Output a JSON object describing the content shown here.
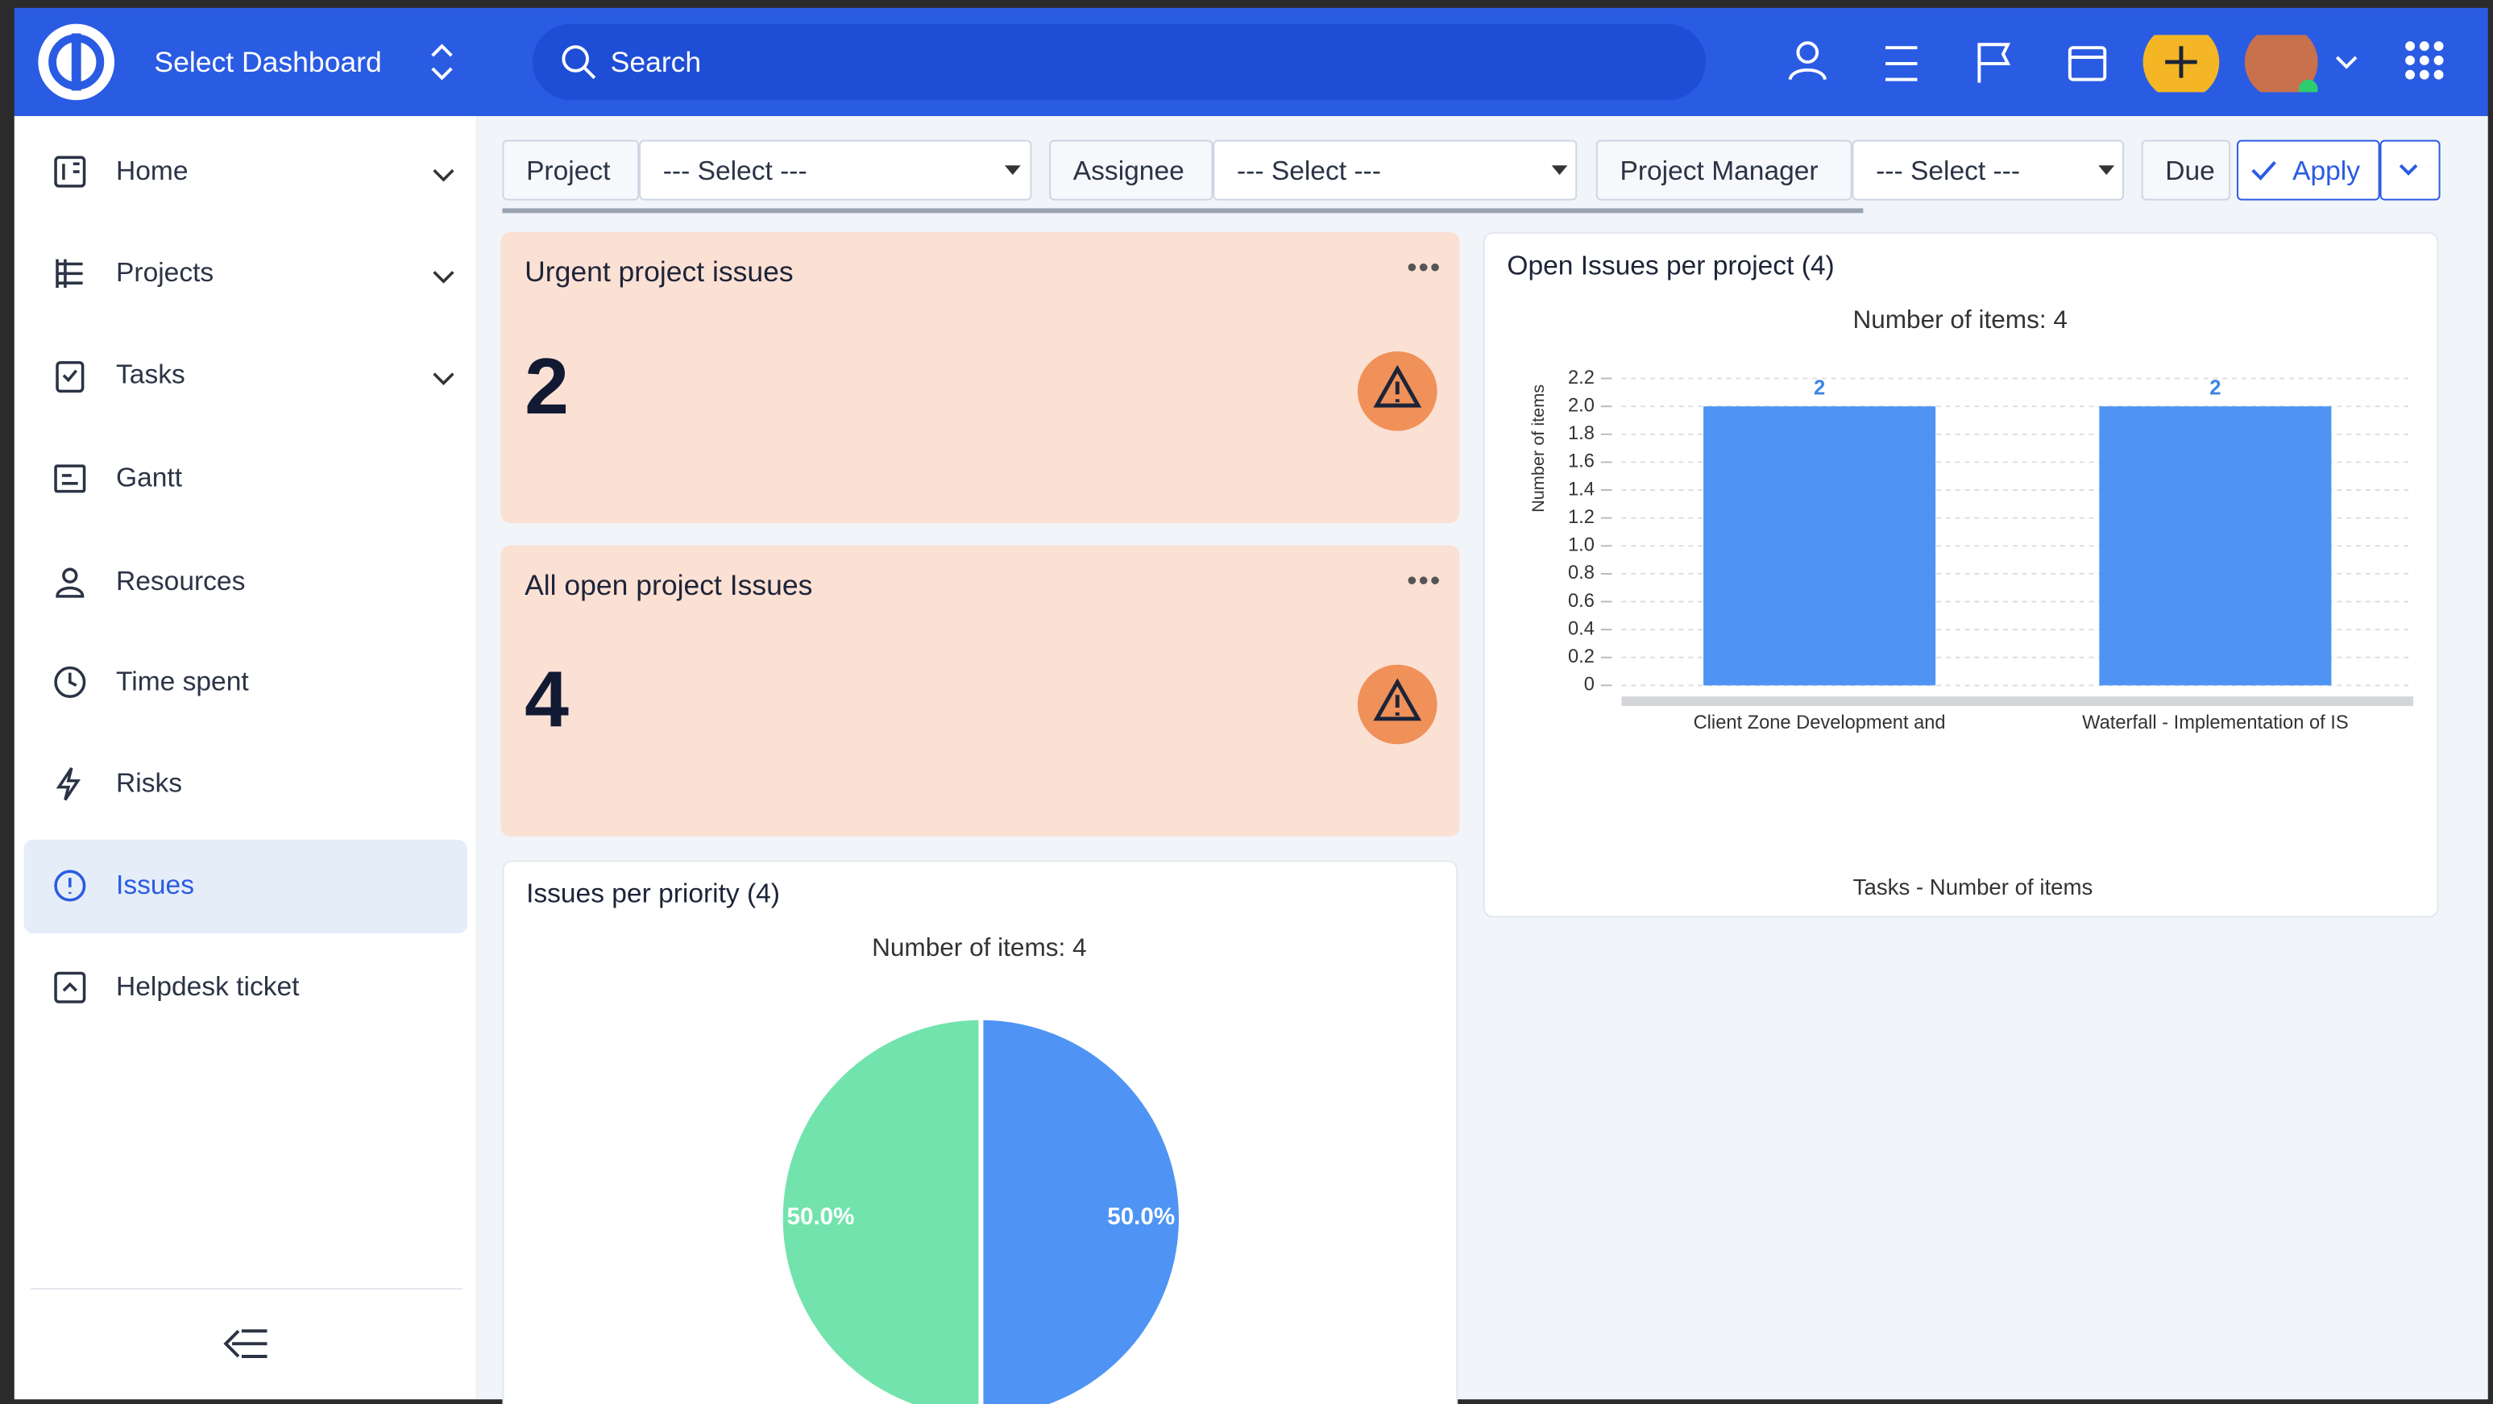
{
  "header": {
    "dashboard_select": "Select Dashboard",
    "search": "Search"
  },
  "sidebar": {
    "items": [
      "Home",
      "Projects",
      "Tasks",
      "Gantt",
      "Resources",
      "Time spent",
      "Risks",
      "Issues",
      "Helpdesk ticket"
    ]
  },
  "filters": {
    "fields": [
      {
        "label": "Project",
        "select": "--- Select ---"
      },
      {
        "label": "Assignee",
        "select": "--- Select ---"
      },
      {
        "label": "Project Manager",
        "select": "--- Select ---"
      }
    ],
    "due": "Due",
    "apply": "Apply"
  },
  "widgets": [
    {
      "title": "Urgent project issues",
      "value": "2"
    },
    {
      "title": "All open project Issues",
      "value": "4"
    }
  ],
  "chart_data": [
    {
      "type": "bar",
      "title": "Open Issues per project (4)",
      "subtitle": "Number of items: 4",
      "y_label": "Number of items",
      "x_label": "Tasks - Number of items",
      "categories": [
        "Client Zone Development and",
        "Waterfall - Implementation of IS"
      ],
      "values": [
        2,
        2
      ],
      "color": "#4f94f4",
      "ylim": [
        0,
        2.2
      ],
      "yticks": [
        0,
        0.2,
        0.4,
        0.6,
        0.8,
        {
          "value": 1,
          "label": "1.0"
        },
        1.2,
        1.4,
        1.6,
        1.8,
        {
          "value": 2,
          "label": "2.0"
        },
        2.2
      ],
      "grid": true
    },
    {
      "type": "pie",
      "title": "Issues per priority (4)",
      "subtitle": "Number of items: 4",
      "values": [
        50,
        50
      ],
      "value_labels": [
        "50.0%",
        "50.0%"
      ],
      "colors": [
        "#4f94f4",
        "#72e3ad"
      ]
    }
  ]
}
